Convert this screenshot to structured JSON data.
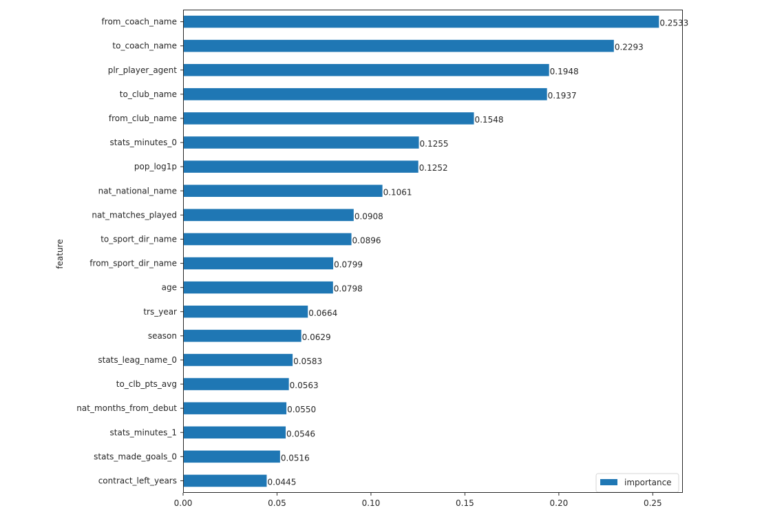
{
  "chart_data": {
    "type": "bar",
    "orientation": "horizontal",
    "title": "",
    "xlabel": "",
    "ylabel": "feature",
    "xlim": [
      0,
      0.266
    ],
    "x_ticks": [
      0.0,
      0.05,
      0.1,
      0.15,
      0.2,
      0.25
    ],
    "x_tick_labels": [
      "0.00",
      "0.05",
      "0.10",
      "0.15",
      "0.20",
      "0.25"
    ],
    "grid": false,
    "legend": {
      "position": "bottom-right",
      "entries": [
        "importance"
      ]
    },
    "bar_color": "#1f77b4",
    "categories": [
      "from_coach_name",
      "to_coach_name",
      "plr_player_agent",
      "to_club_name",
      "from_club_name",
      "stats_minutes_0",
      "pop_log1p",
      "nat_national_name",
      "nat_matches_played",
      "to_sport_dir_name",
      "from_sport_dir_name",
      "age",
      "trs_year",
      "season",
      "stats_leag_name_0",
      "to_clb_pts_avg",
      "nat_months_from_debut",
      "stats_minutes_1",
      "stats_made_goals_0",
      "contract_left_years"
    ],
    "series": [
      {
        "name": "importance",
        "values": [
          0.2533,
          0.2293,
          0.1948,
          0.1937,
          0.1548,
          0.1255,
          0.1252,
          0.1061,
          0.0908,
          0.0896,
          0.0799,
          0.0798,
          0.0664,
          0.0629,
          0.0583,
          0.0563,
          0.055,
          0.0546,
          0.0516,
          0.0445
        ],
        "labels": [
          "0.2533",
          "0.2293",
          "0.1948",
          "0.1937",
          "0.1548",
          "0.1255",
          "0.1252",
          "0.1061",
          "0.0908",
          "0.0896",
          "0.0799",
          "0.0798",
          "0.0664",
          "0.0629",
          "0.0583",
          "0.0563",
          "0.0550",
          "0.0546",
          "0.0516",
          "0.0445"
        ]
      }
    ]
  }
}
